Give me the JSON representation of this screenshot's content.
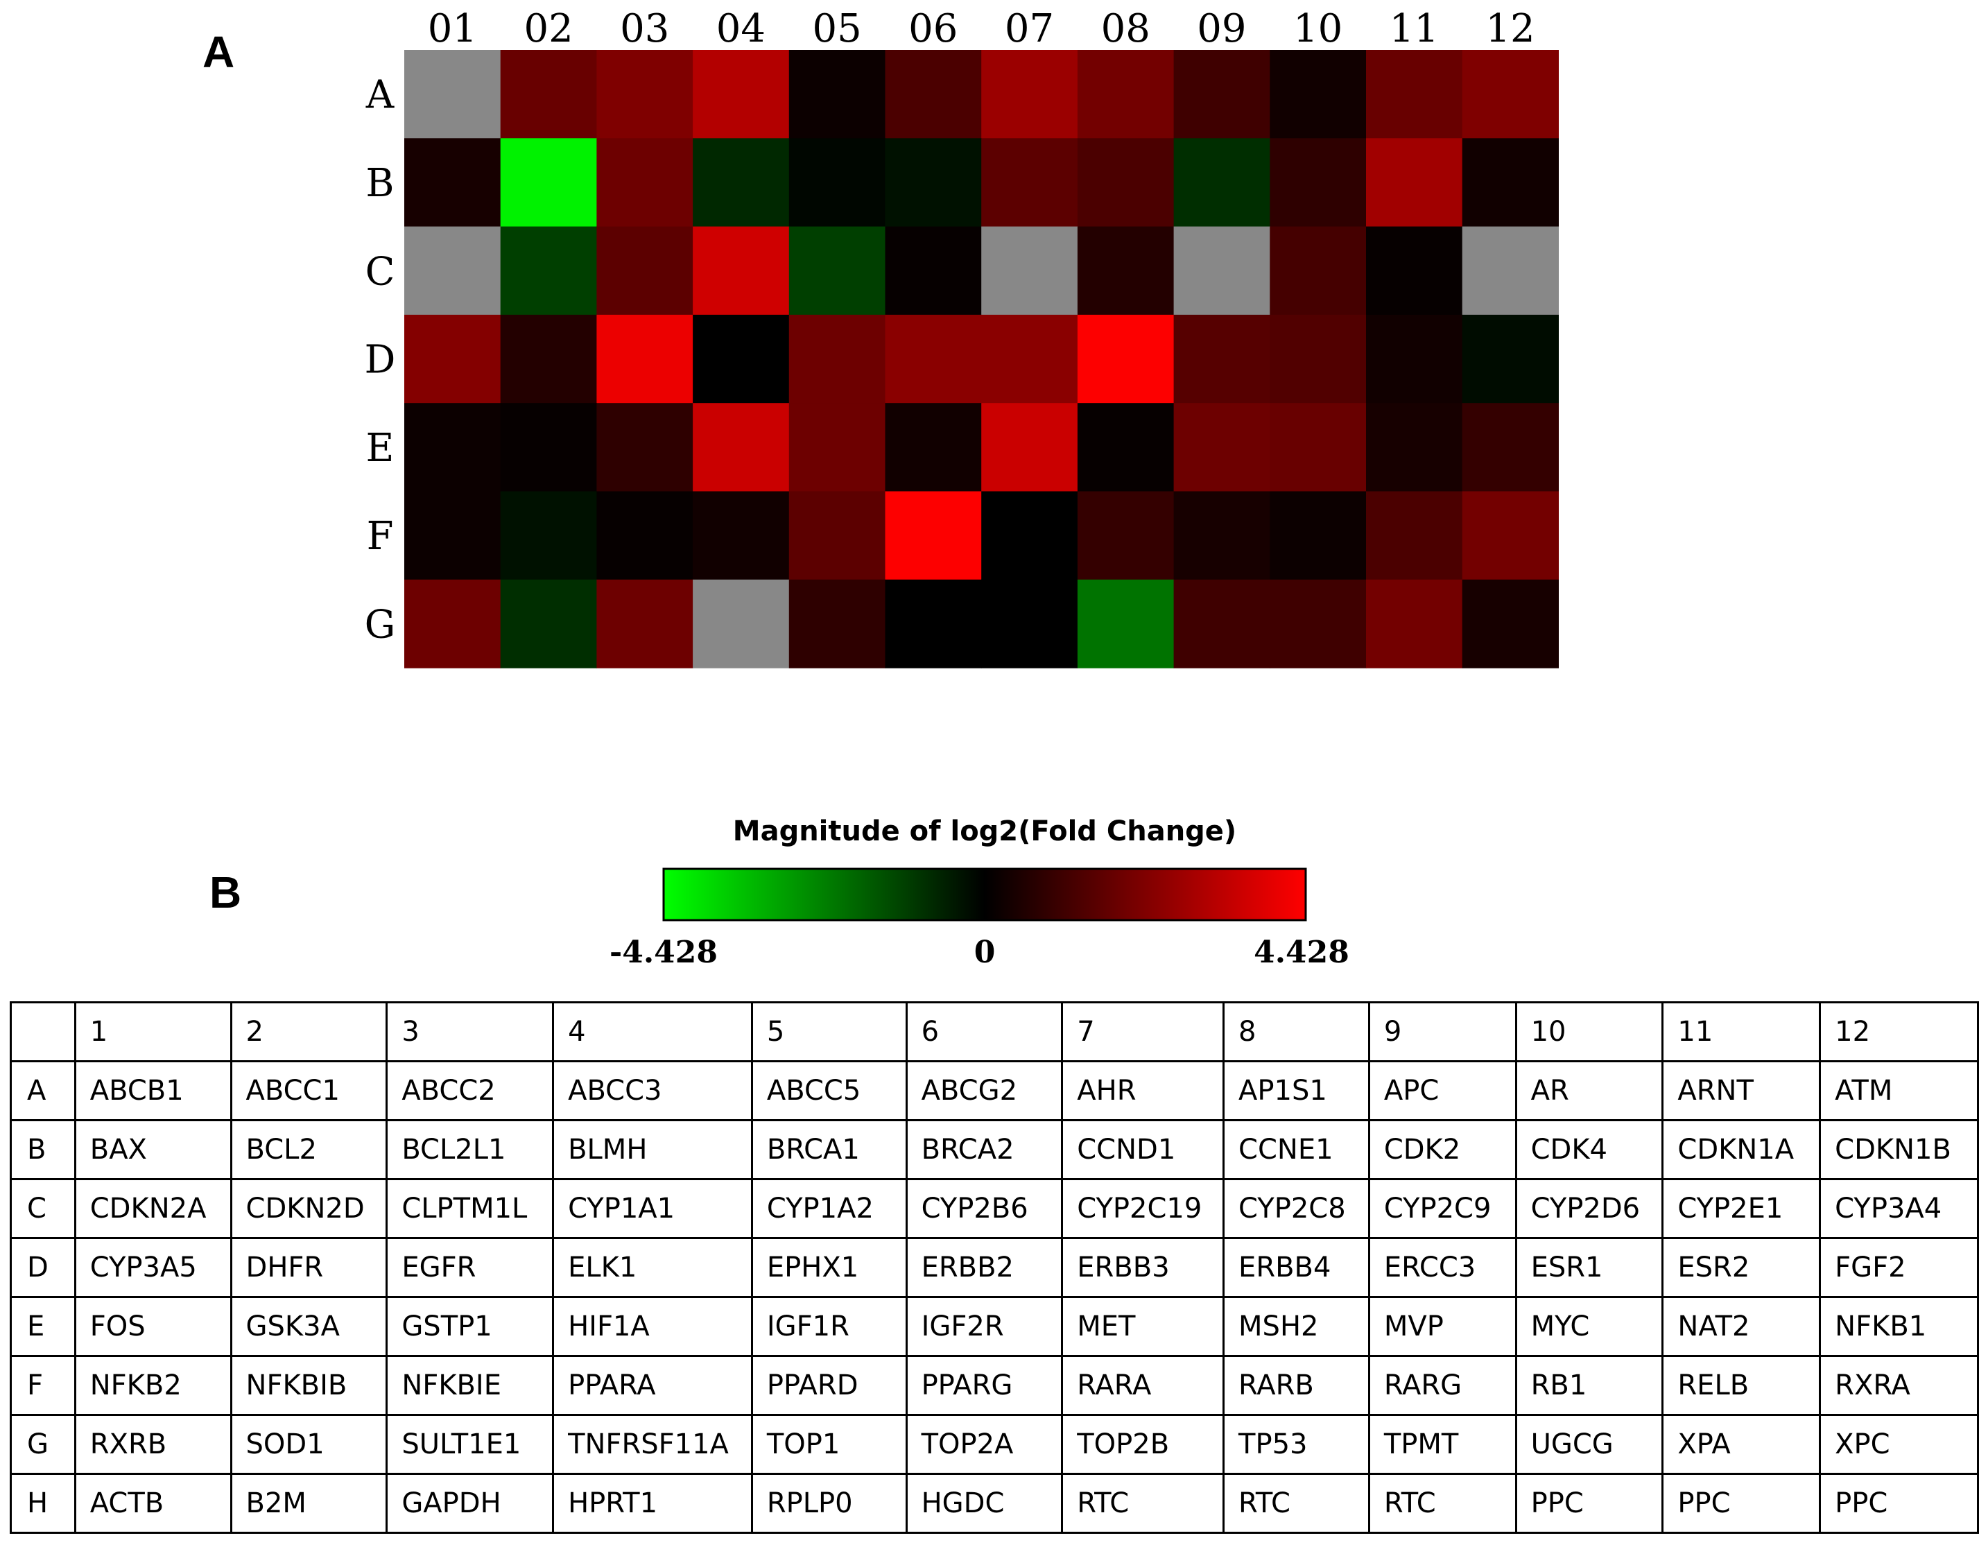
{
  "panels": {
    "a_label": "A",
    "b_label": "B"
  },
  "colors": {
    "up": "#ff0000",
    "zero": "#000000",
    "down": "#00ff00",
    "na": "#888888"
  },
  "chart_data": [
    {
      "type": "heatmap",
      "col_labels": [
        "01",
        "02",
        "03",
        "04",
        "05",
        "06",
        "07",
        "08",
        "09",
        "10",
        "11",
        "12"
      ],
      "row_labels": [
        "A",
        "B",
        "C",
        "D",
        "E",
        "F",
        "G"
      ],
      "scale": {
        "min": -4.428,
        "max": 4.428
      },
      "values": [
        [
          null,
          1.8,
          2.2,
          3.1,
          0.2,
          1.3,
          2.7,
          2.0,
          1.1,
          0.3,
          1.8,
          2.2
        ],
        [
          0.4,
          -4.2,
          1.9,
          -0.7,
          -0.1,
          -0.3,
          1.6,
          1.3,
          -0.8,
          0.8,
          2.8,
          0.3
        ],
        [
          null,
          -1.1,
          1.6,
          3.6,
          -1.1,
          0.1,
          null,
          0.6,
          null,
          1.2,
          0.1,
          null
        ],
        [
          2.3,
          0.6,
          4.1,
          0.0,
          1.9,
          2.4,
          2.4,
          4.4,
          1.5,
          1.4,
          0.3,
          -0.2
        ],
        [
          0.2,
          0.1,
          0.8,
          3.5,
          1.9,
          0.3,
          3.5,
          0.1,
          1.9,
          1.8,
          0.4,
          0.9
        ],
        [
          0.2,
          -0.3,
          0.1,
          0.3,
          1.6,
          4.4,
          0.0,
          0.9,
          0.4,
          0.2,
          1.3,
          2.0
        ],
        [
          1.9,
          -0.8,
          1.9,
          null,
          0.8,
          0.0,
          0.0,
          -2.0,
          1.1,
          1.1,
          2.0,
          0.4
        ]
      ]
    },
    {
      "type": "colorbar",
      "title": "Magnitude of log2(Fold Change)",
      "tick_labels": [
        "-4.428",
        "0",
        "4.428"
      ],
      "range": [
        -4.428,
        4.428
      ]
    }
  ],
  "table": {
    "header": [
      "",
      "1",
      "2",
      "3",
      "4",
      "5",
      "6",
      "7",
      "8",
      "9",
      "10",
      "11",
      "12"
    ],
    "rows": [
      [
        "A",
        "ABCB1",
        "ABCC1",
        "ABCC2",
        "ABCC3",
        "ABCC5",
        "ABCG2",
        "AHR",
        "AP1S1",
        "APC",
        "AR",
        "ARNT",
        "ATM"
      ],
      [
        "B",
        "BAX",
        "BCL2",
        "BCL2L1",
        "BLMH",
        "BRCA1",
        "BRCA2",
        "CCND1",
        "CCNE1",
        "CDK2",
        "CDK4",
        "CDKN1A",
        "CDKN1B"
      ],
      [
        "C",
        "CDKN2A",
        "CDKN2D",
        "CLPTM1L",
        "CYP1A1",
        "CYP1A2",
        "CYP2B6",
        "CYP2C19",
        "CYP2C8",
        "CYP2C9",
        "CYP2D6",
        "CYP2E1",
        "CYP3A4"
      ],
      [
        "D",
        "CYP3A5",
        "DHFR",
        "EGFR",
        "ELK1",
        "EPHX1",
        "ERBB2",
        "ERBB3",
        "ERBB4",
        "ERCC3",
        "ESR1",
        "ESR2",
        "FGF2"
      ],
      [
        "E",
        "FOS",
        "GSK3A",
        "GSTP1",
        "HIF1A",
        "IGF1R",
        "IGF2R",
        "MET",
        "MSH2",
        "MVP",
        "MYC",
        "NAT2",
        "NFKB1"
      ],
      [
        "F",
        "NFKB2",
        "NFKBIB",
        "NFKBIE",
        "PPARA",
        "PPARD",
        "PPARG",
        "RARA",
        "RARB",
        "RARG",
        "RB1",
        "RELB",
        "RXRA"
      ],
      [
        "G",
        "RXRB",
        "SOD1",
        "SULT1E1",
        "TNFRSF11A",
        "TOP1",
        "TOP2A",
        "TOP2B",
        "TP53",
        "TPMT",
        "UGCG",
        "XPA",
        "XPC"
      ],
      [
        "H",
        "ACTB",
        "B2M",
        "GAPDH",
        "HPRT1",
        "RPLP0",
        "HGDC",
        "RTC",
        "RTC",
        "RTC",
        "PPC",
        "PPC",
        "PPC"
      ]
    ]
  }
}
